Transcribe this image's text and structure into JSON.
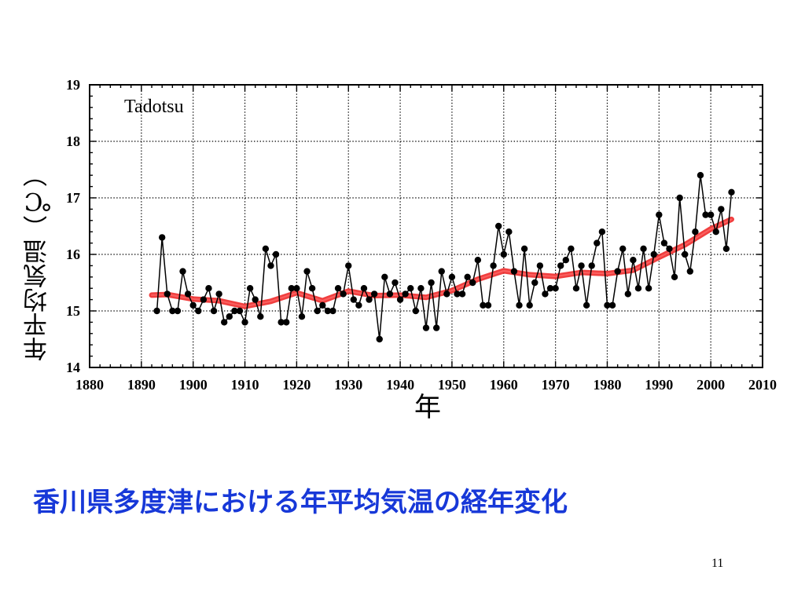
{
  "slide": {
    "caption": "香川県多度津における年平均気温の経年変化",
    "page_number": "11"
  },
  "chart_data": {
    "type": "line",
    "title": "",
    "annotation": "Tadotsu",
    "xlabel": "年",
    "ylabel": "年平均気温（℃）",
    "xlim": [
      1880,
      2010
    ],
    "ylim": [
      14,
      19
    ],
    "x_ticks": [
      "1880",
      "1890",
      "1900",
      "1910",
      "1920",
      "1930",
      "1940",
      "1950",
      "1960",
      "1970",
      "1980",
      "1990",
      "2000",
      "2010"
    ],
    "y_ticks": [
      "14",
      "15",
      "16",
      "17",
      "18",
      "19"
    ],
    "grid": true,
    "legend": "none",
    "colors": {
      "annual_line": "#000000",
      "annual_points": "#000000",
      "trend": "#ee2a2a"
    },
    "series": [
      {
        "x": [
          1893,
          1894,
          1895,
          1896,
          1897,
          1898,
          1899,
          1900,
          1901,
          1902,
          1903,
          1904,
          1905,
          1906,
          1907,
          1908,
          1909,
          1910,
          1911,
          1912,
          1913,
          1914,
          1915,
          1916,
          1917,
          1918,
          1919,
          1920,
          1921,
          1922,
          1923,
          1924,
          1925,
          1926,
          1927,
          1928,
          1929,
          1930,
          1931,
          1932,
          1933,
          1934,
          1935,
          1936,
          1937,
          1938,
          1939,
          1940,
          1941,
          1942,
          1943,
          1944,
          1945,
          1946,
          1947,
          1948,
          1949,
          1950,
          1951,
          1952,
          1953,
          1954,
          1955,
          1956,
          1957,
          1958,
          1959,
          1960,
          1961,
          1962,
          1963,
          1964,
          1965,
          1966,
          1967,
          1968,
          1969,
          1970,
          1971,
          1972,
          1973,
          1974,
          1975,
          1976,
          1977,
          1978,
          1979,
          1980,
          1981,
          1982,
          1983,
          1984,
          1985,
          1986,
          1987,
          1988,
          1989,
          1990,
          1991,
          1992,
          1993,
          1994,
          1995,
          1996,
          1997,
          1998,
          1999,
          2000,
          2001,
          2002,
          2003,
          2004
        ],
        "values": [
          15.0,
          16.3,
          15.3,
          15.0,
          15.0,
          15.7,
          15.3,
          15.1,
          15.0,
          15.2,
          15.4,
          15.0,
          15.3,
          14.8,
          14.9,
          15.0,
          15.0,
          14.8,
          15.4,
          15.2,
          14.9,
          16.1,
          15.8,
          16.0,
          14.8,
          14.8,
          15.4,
          15.4,
          14.9,
          15.7,
          15.4,
          15.0,
          15.1,
          15.0,
          15.0,
          15.4,
          15.3,
          15.8,
          15.2,
          15.1,
          15.4,
          15.2,
          15.3,
          14.5,
          15.6,
          15.3,
          15.5,
          15.2,
          15.3,
          15.4,
          15.0,
          15.4,
          14.7,
          15.5,
          14.7,
          15.7,
          15.3,
          15.6,
          15.3,
          15.3,
          15.6,
          15.5,
          15.9,
          15.1,
          15.1,
          15.8,
          16.5,
          16.0,
          16.4,
          15.7,
          15.1,
          16.1,
          15.1,
          15.5,
          15.8,
          15.3,
          15.4,
          15.4,
          15.8,
          15.9,
          16.1,
          15.4,
          15.8,
          15.1,
          15.8,
          16.2,
          16.4,
          15.1,
          15.1,
          15.7,
          16.1,
          15.3,
          15.9,
          15.4,
          16.1,
          15.4,
          16.0,
          16.7,
          16.2,
          16.1,
          15.6,
          17.0,
          16.0,
          15.7,
          16.4,
          17.4,
          16.7,
          16.7,
          16.4,
          16.8,
          16.1,
          17.1
        ]
      },
      {
        "x": [
          1892,
          1895,
          1900,
          1905,
          1910,
          1915,
          1920,
          1925,
          1930,
          1935,
          1940,
          1945,
          1950,
          1955,
          1960,
          1965,
          1970,
          1975,
          1980,
          1985,
          1990,
          1995,
          2000,
          2004
        ],
        "values": [
          15.28,
          15.29,
          15.21,
          15.18,
          15.08,
          15.17,
          15.32,
          15.18,
          15.35,
          15.27,
          15.28,
          15.24,
          15.36,
          15.56,
          15.71,
          15.64,
          15.61,
          15.68,
          15.66,
          15.72,
          15.95,
          16.17,
          16.45,
          16.62
        ]
      }
    ]
  }
}
